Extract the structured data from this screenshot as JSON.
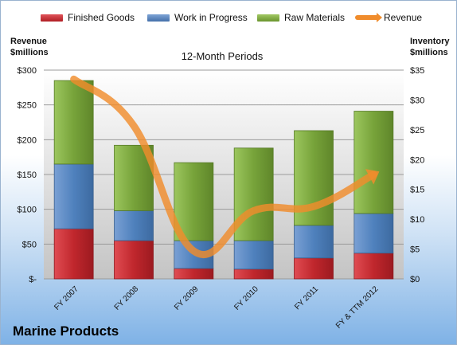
{
  "chart_data": {
    "type": "bar",
    "title": "12-Month Periods",
    "categories": [
      "FY 2007",
      "FY 2008",
      "FY 2009",
      "FY 2010",
      "FY 2011",
      "FY & TTM 2012"
    ],
    "series": [
      {
        "name": "Finished Goods",
        "values": [
          72,
          55,
          15,
          14,
          30,
          37
        ],
        "color": "#c0272d"
      },
      {
        "name": "Work in Progress",
        "values": [
          93,
          43,
          40,
          41,
          47,
          57
        ],
        "color": "#4f81bd"
      },
      {
        "name": "Raw Materials",
        "values": [
          120,
          94,
          112,
          133,
          136,
          147
        ],
        "color": "#77a33a"
      }
    ],
    "line_series": {
      "name": "Revenue",
      "values": [
        287,
        220,
        40,
        98,
        104,
        150
      ],
      "color": "#f08c2c"
    },
    "stacked": true,
    "ylabel_left": "Revenue\n$millions",
    "ylabel_right": "Inventory\n$millions",
    "ylim_left": [
      0,
      300
    ],
    "ylim_right": [
      0,
      35
    ],
    "yticks_left": [
      "$-",
      "$50",
      "$100",
      "$150",
      "$200",
      "$250",
      "$300"
    ],
    "yticks_right": [
      "$0",
      "$5",
      "$10",
      "$15",
      "$20",
      "$25",
      "$30",
      "$35"
    ],
    "grid": true,
    "legend": "top"
  },
  "company": "Marine Products"
}
